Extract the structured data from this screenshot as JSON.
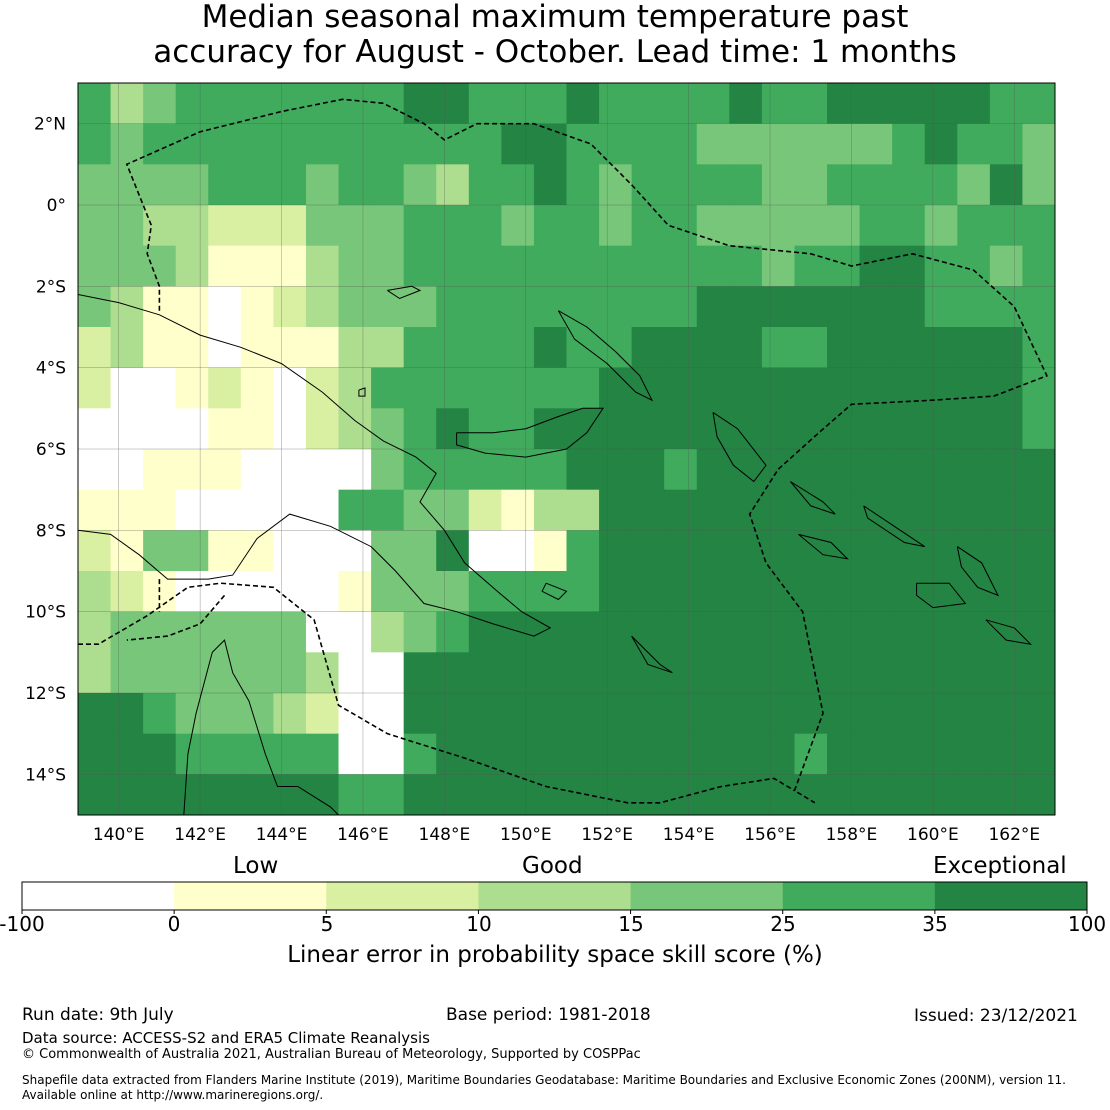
{
  "title_line1": "Median seasonal maximum temperature past",
  "title_line2": "accuracy for August - October. Lead time: 1 months",
  "map": {
    "lon_range": [
      139,
      163
    ],
    "lat_range": [
      -15,
      3
    ],
    "lon_ticks": [
      {
        "value": 140,
        "label": "140°E"
      },
      {
        "value": 142,
        "label": "142°E"
      },
      {
        "value": 144,
        "label": "144°E"
      },
      {
        "value": 146,
        "label": "146°E"
      },
      {
        "value": 148,
        "label": "148°E"
      },
      {
        "value": 150,
        "label": "150°E"
      },
      {
        "value": 152,
        "label": "152°E"
      },
      {
        "value": 154,
        "label": "154°E"
      },
      {
        "value": 156,
        "label": "156°E"
      },
      {
        "value": 158,
        "label": "158°E"
      },
      {
        "value": 160,
        "label": "160°E"
      },
      {
        "value": 162,
        "label": "162°E"
      }
    ],
    "lat_ticks": [
      {
        "value": 2,
        "label": "2°N"
      },
      {
        "value": 0,
        "label": "0°"
      },
      {
        "value": -2,
        "label": "2°S"
      },
      {
        "value": -4,
        "label": "4°S"
      },
      {
        "value": -6,
        "label": "6°S"
      },
      {
        "value": -8,
        "label": "8°S"
      },
      {
        "value": -10,
        "label": "10°S"
      },
      {
        "value": -12,
        "label": "12°S"
      },
      {
        "value": -14,
        "label": "14°S"
      }
    ]
  },
  "legend": {
    "categories": [
      "Low",
      "Good",
      "Exceptional"
    ],
    "bins": [
      {
        "from": -100,
        "to": 0,
        "color": "#ffffff"
      },
      {
        "from": 0,
        "to": 5,
        "color": "#ffffcc"
      },
      {
        "from": 5,
        "to": 10,
        "color": "#d9f0a3"
      },
      {
        "from": 10,
        "to": 15,
        "color": "#addd8e"
      },
      {
        "from": 15,
        "to": 25,
        "color": "#78c679"
      },
      {
        "from": 25,
        "to": 35,
        "color": "#41ab5d"
      },
      {
        "from": 35,
        "to": 100,
        "color": "#238443"
      }
    ],
    "tick_labels": [
      "-100",
      "0",
      "5",
      "10",
      "15",
      "25",
      "35",
      "100"
    ],
    "title": "Linear error in probability space skill score (%)"
  },
  "footer": {
    "run_date": "Run date: 9th July",
    "base_period": "Base period: 1981-2018",
    "issued": "Issued: 23/12/2021",
    "data_source": "Data source: ACCESS-S2 and ERA5 Climate Reanalysis",
    "copyright": "© Commonwealth of Australia 2021, Australian Bureau of Meteorology, Supported by COSPPac",
    "shapefile_line1": "Shapefile data extracted from Flanders Marine Institute (2019), Maritime Boundaries Geodatabase: Maritime Boundaries and Exclusive Economic Zones (200NM), version 11.",
    "shapefile_line2": "Available online at http://www.marineregions.org/."
  }
}
